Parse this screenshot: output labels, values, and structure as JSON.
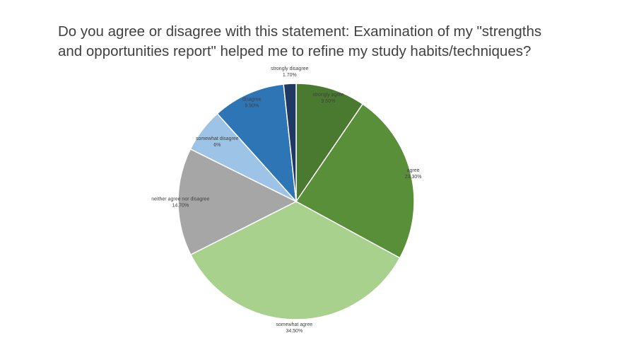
{
  "slide": {
    "title": "Do you agree or disagree with this statement: Examination of my \"strengths and opportunities report\" helped me to refine my study habits/techniques?"
  },
  "chart_data": {
    "type": "pie",
    "title": "Do you agree or disagree with this statement: Examination of my \"strengths and opportunities report\" helped me to refine my study habits/techniques?",
    "categories": [
      "strongly agree",
      "agree",
      "somewhat agree",
      "neither agree nor disagree",
      "somewhat disagree",
      "disagree",
      "strongly disagree"
    ],
    "values": [
      9.5,
      23.3,
      34.5,
      14.7,
      6,
      9.9,
      1.7
    ],
    "value_labels": [
      "9.50%",
      "23.30%",
      "34.50%",
      "14.70%",
      "6%",
      "9.90%",
      "1.70%"
    ],
    "colors": [
      "#4a7a30",
      "#5a8f3a",
      "#a9d18e",
      "#a6a6a6",
      "#9dc3e6",
      "#2e75b6",
      "#1f3864"
    ],
    "legend": "none",
    "start_angle": "12 o'clock",
    "direction": "clockwise"
  }
}
